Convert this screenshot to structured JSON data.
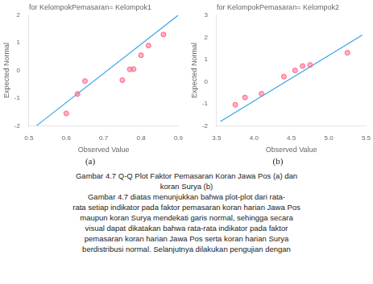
{
  "chart_data": [
    {
      "type": "scatter",
      "title": "for KelompokPemasaran= Kelompok1",
      "subtitle": "(a)",
      "x_label": "Observed Value",
      "y_label": "Expected Normal",
      "xlim": [
        0.5,
        0.9
      ],
      "ylim": [
        -2.0,
        2.0
      ],
      "xticks": [
        0.5,
        0.6,
        0.7,
        0.8,
        0.9
      ],
      "yticks": [
        -2,
        -1,
        0,
        1,
        2
      ],
      "grid": false,
      "series": [
        {
          "type": "line",
          "x": [
            0.52,
            0.9
          ],
          "values": [
            -2.0,
            2.0
          ]
        },
        {
          "type": "scatter",
          "marker": "circle",
          "x": [
            0.6,
            0.63,
            0.65,
            0.75,
            0.77,
            0.78,
            0.8,
            0.82,
            0.86
          ],
          "values": [
            -1.55,
            -0.85,
            -0.38,
            -0.35,
            0.04,
            0.05,
            0.55,
            0.9,
            1.3
          ]
        }
      ]
    },
    {
      "type": "scatter",
      "title": "for KelompokPemasaran= Kelompok2",
      "subtitle": "(b)",
      "x_label": "Observed Value",
      "y_label": "Expected Normal",
      "xlim": [
        3.5,
        5.5
      ],
      "ylim": [
        -2.0,
        3.0
      ],
      "xticks": [
        3.5,
        {
          "value": 4.0,
          "label": "4.0"
        },
        4.5,
        {
          "value": 5.0,
          "label": "5.0"
        },
        5.5
      ],
      "yticks": [
        -2,
        -1,
        0,
        1,
        2,
        3
      ],
      "grid": false,
      "series": [
        {
          "type": "line",
          "x": [
            3.55,
            5.45
          ],
          "values": [
            -1.8,
            2.1
          ]
        },
        {
          "type": "scatter",
          "marker": "circle",
          "x": [
            3.75,
            3.88,
            4.1,
            4.4,
            4.55,
            4.65,
            4.75,
            5.25
          ],
          "values": [
            -1.05,
            -0.72,
            -0.55,
            0.22,
            0.5,
            0.7,
            0.75,
            1.3
          ]
        }
      ]
    }
  ],
  "annotations": [
    "Gambar 4.7 Q-Q Plot Faktor Pemasaran Koran Jawa Pos (a) dan",
    "koran Surya (b)",
    "Gambar 4.7 diatas menunjukkan bahwa plot-plot dari rata-",
    "rata setiap indikator pada faktor pemasaran koran harian Jawa Pos",
    "maupun koran Surya mendekati garis normal, sehingga secara",
    "visual dapat dikatakan bahwa rata-rata indikator pada faktor",
    "pemasaran koran harian Jawa Pos serta koran harian Surya",
    "berdistribusi normal. Selanjutnya dilakukan pengujian dengan"
  ]
}
